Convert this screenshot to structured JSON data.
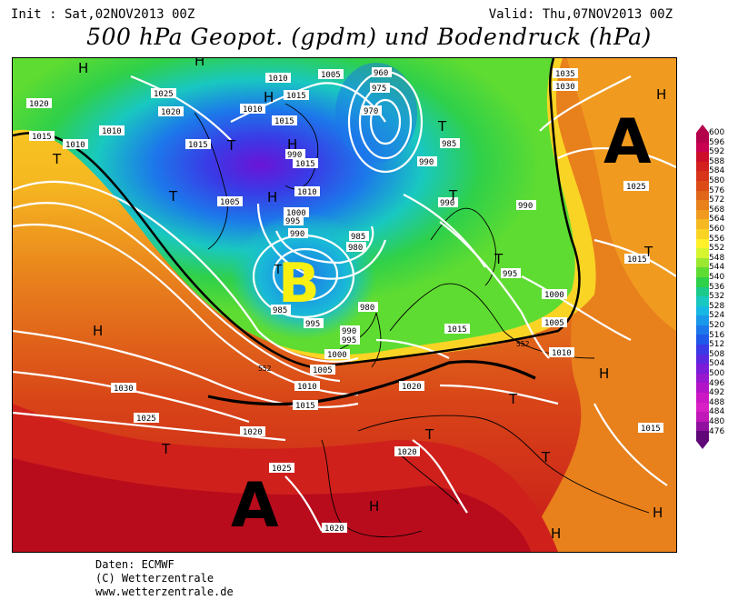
{
  "header": {
    "init": "Init : Sat,02NOV2013 00Z",
    "valid": "Valid: Thu,07NOV2013 00Z",
    "title": "500 hPa Geopot. (gpdm) und Bodendruck (hPa)"
  },
  "credits": {
    "line1": "Daten: ECMWF",
    "line2": "(C) Wetterzentrale",
    "line3": "www.wetterzentrale.de"
  },
  "centers": {
    "low_big": "B",
    "high_east": "A",
    "high_south": "A"
  },
  "symbols": {
    "high": "H",
    "low": "T"
  },
  "isobar_labels": [
    "1000",
    "1005",
    "1010",
    "1015",
    "1020",
    "1025",
    "1030",
    "1035",
    "960",
    "970",
    "975",
    "980",
    "985",
    "990",
    "995"
  ],
  "contour_552_label": "552",
  "colorbar": {
    "ticks": [
      "600",
      "596",
      "592",
      "588",
      "584",
      "580",
      "576",
      "572",
      "568",
      "564",
      "560",
      "556",
      "552",
      "548",
      "544",
      "540",
      "536",
      "532",
      "528",
      "524",
      "520",
      "516",
      "512",
      "508",
      "504",
      "500",
      "496",
      "492",
      "488",
      "484",
      "480",
      "476"
    ],
    "colors": [
      "#b4004a",
      "#c8004f",
      "#cc0d2a",
      "#d41f1f",
      "#d73419",
      "#dc4b16",
      "#e0661a",
      "#e8801c",
      "#f09b1f",
      "#f6b821",
      "#fad424",
      "#fff02a",
      "#d6f52e",
      "#9ae830",
      "#5fdc31",
      "#2fd04a",
      "#1bc98a",
      "#19c8c0",
      "#18b8e4",
      "#1a98ea",
      "#1c78ea",
      "#2058ea",
      "#3a3ae6",
      "#5a28e0",
      "#7a1cd8",
      "#9818d0",
      "#b414c8",
      "#cc18c4",
      "#d820c6",
      "#c018b8",
      "#9010a0",
      "#600878"
    ]
  }
}
